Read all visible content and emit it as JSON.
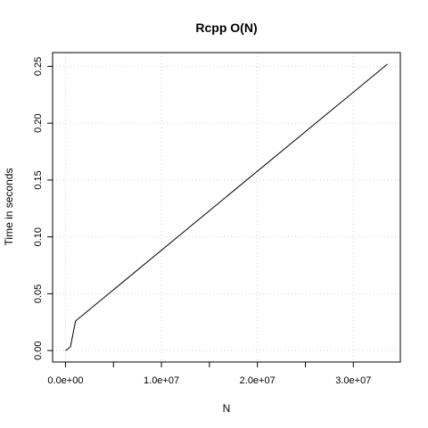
{
  "chart_data": {
    "type": "line",
    "title": "Rcpp O(N)",
    "xlabel": "N",
    "ylabel": "Time in seconds",
    "xlim": [
      -1342177,
      34896609
    ],
    "ylim": [
      -0.01008,
      0.26208
    ],
    "grid": true,
    "x_ticks": [
      {
        "value": 0,
        "label": "0.0e+00"
      },
      {
        "value": 5000000,
        "label": ""
      },
      {
        "value": 10000000,
        "label": "1.0e+07"
      },
      {
        "value": 15000000,
        "label": ""
      },
      {
        "value": 20000000,
        "label": "2.0e+07"
      },
      {
        "value": 25000000,
        "label": ""
      },
      {
        "value": 30000000,
        "label": "3.0e+07"
      }
    ],
    "y_ticks": [
      {
        "value": 0.0,
        "label": "0.00"
      },
      {
        "value": 0.05,
        "label": "0.05"
      },
      {
        "value": 0.1,
        "label": "0.10"
      },
      {
        "value": 0.15,
        "label": "0.15"
      },
      {
        "value": 0.2,
        "label": "0.20"
      },
      {
        "value": 0.25,
        "label": "0.25"
      }
    ],
    "series": [
      {
        "color": "#000000",
        "x": [
          0,
          262144,
          524288,
          1048576,
          33554432
        ],
        "y": [
          0.0,
          0.0015,
          0.0035,
          0.026,
          0.252
        ]
      }
    ]
  }
}
